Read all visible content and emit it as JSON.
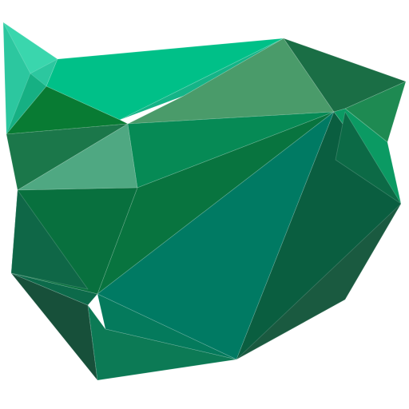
{
  "logo": {
    "name": "low-poly-emerald-cat-head",
    "palette": {
      "ear_left_light": "#33d1a8",
      "ear_left_mid": "#1fbf93",
      "top_bright": "#00bf86",
      "top_right_sage": "#4a9b6a",
      "ear_right_dark": "#1a6e45",
      "ear_right_mid": "#1e8a52",
      "forehead_deep": "#0a7a33",
      "band_mid": "#1c7a4d",
      "pale_facet": "#4fa882",
      "center_band": "#068a55",
      "face_teal": "#007a63",
      "face_dark": "#0a5e40",
      "cheek_left": "#08703e",
      "cheek_left_dark": "#0e6648",
      "chin_left": "#17503a",
      "chin": "#0c7a55",
      "jaw_right": "#1a5a40"
    }
  }
}
